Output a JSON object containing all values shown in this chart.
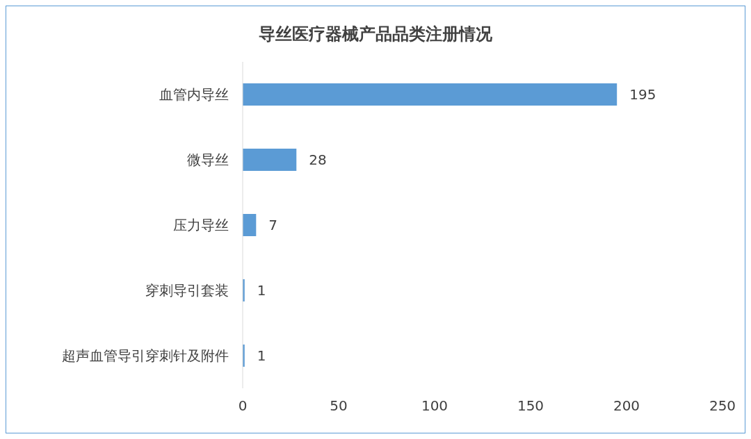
{
  "chart_data": {
    "type": "bar",
    "orientation": "horizontal",
    "title": "导丝医疗器械产品品类注册情况",
    "categories": [
      "血管内导丝",
      "微导丝",
      "压力导丝",
      "穿刺导引套装",
      "超声血管导引穿刺针及附件"
    ],
    "values": [
      195,
      28,
      7,
      1,
      1
    ],
    "color": "#5b9bd5",
    "xlim": [
      0,
      250
    ],
    "xticks": [
      0,
      50,
      100,
      150,
      200,
      250
    ],
    "grid": false,
    "data_labels": true
  }
}
